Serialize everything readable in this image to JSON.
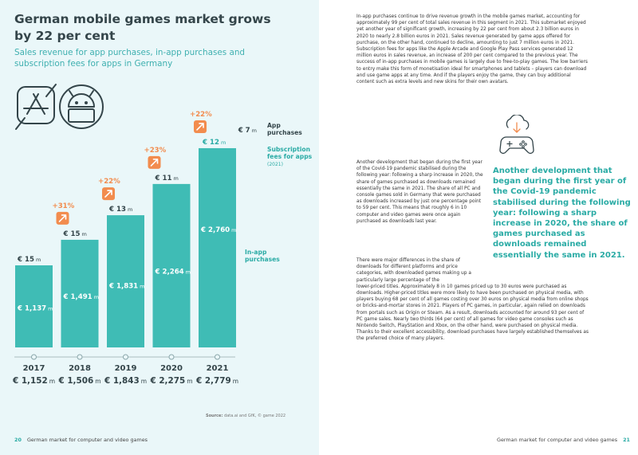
{
  "left_page": {
    "title": "German mobile games market grows by 22 per cent",
    "subtitle": "Sales revenue for app purchases, in-app purchases and subscription fees for apps in Germany",
    "legend": {
      "app_purchases": "App purchases",
      "subscription_fees": "Subscription fees for apps",
      "subscription_year": "(2021)",
      "in_app_purchases": "In-app purchases"
    },
    "source_label": "Source:",
    "source_text": "data.ai and GfK, © game 2022",
    "footer_page_number": "20",
    "footer_text": "German market for computer and video games"
  },
  "chart_data": {
    "type": "bar",
    "stacked": true,
    "title": "German mobile games market grows by 22 per cent",
    "subtitle": "Sales revenue for app purchases, in-app purchases and subscription fees for apps in Germany",
    "unit": "€ m",
    "categories": [
      "2017",
      "2018",
      "2019",
      "2020",
      "2021"
    ],
    "series": [
      {
        "name": "In-app purchases",
        "values": [
          1137,
          1491,
          1831,
          2264,
          2760
        ],
        "labels": [
          "€ 1,137",
          "€ 1,491",
          "€ 1,831",
          "€ 2,264",
          "€ 2,760"
        ]
      },
      {
        "name": "App purchases",
        "values": [
          15,
          15,
          13,
          11,
          7
        ],
        "labels": [
          "€ 15",
          "€ 15",
          "€ 13",
          "€ 11",
          "€ 7"
        ]
      },
      {
        "name": "Subscription fees for apps",
        "values": [
          0,
          0,
          0,
          0,
          12
        ],
        "labels": [
          "",
          "",
          "",
          "",
          "€ 12"
        ]
      }
    ],
    "totals": [
      1152,
      1506,
      1843,
      2275,
      2779
    ],
    "total_labels": [
      "€ 1,152",
      "€ 1,506",
      "€ 1,843",
      "€ 2,275",
      "€ 2,779"
    ],
    "unit_suffix": "m",
    "growth": [
      "",
      "+31%",
      "+22%",
      "+23%",
      "+22%"
    ],
    "colors": {
      "bar": "#3fbcb5",
      "arrow": "#f28c4e",
      "growth_text": "#f28c4e",
      "label": "#2aaba5",
      "dark": "#34454a"
    }
  },
  "right_page": {
    "p1": "In-app purchases continue to drive revenue growth in the mobile games market, accounting for approximately 99 per cent of total sales revenue in this segment in 2021. This submarket enjoyed yet another year of significant growth, increasing by 22 per cent from about 2.3 billion euros in 2020 to nearly 2.8 billion euros in 2021. Sales revenue generated by game apps offered for purchase, on the other hand, continued to decline, amounting to just 7 million euros in 2021. Subscription fees for apps like the Apple Arcade and Google Play Pass services generated 12 million euros in sales revenue, an increase of 200 per cent compared to the previous year. The success of in-app purchases in mobile games is largely due to free-to-play games. The low barriers to entry make this form of monetisation ideal for smartphones and tablets – players can download and use game apps at any time. And if the players enjoy the game, they can buy additional content such as extra levels and new skins for their own avatars.",
    "p2": "Another development that began during the first year of the Covid-19 pandemic stabilised during the following year: following a sharp increase in 2020, the share of games purchased as downloads remained essentially the same in 2021. The share of all PC and console games sold in Germany that were purchased as downloads increased by just one percentage point to 59 per cent. This means that roughly 6 in 10 computer and video games were once again purchased as downloads last year.",
    "p3_intro": "There were major differences in the share of downloads for different platforms and price categories, with downloaded games making up a particularly large percentage of the",
    "p3_rest": "lower-priced titles. Approximately 8 in 10 games priced up to 30 euros were purchased as downloads. Higher-priced titles were more likely to have been purchased on physical media, with players buying 68 per cent of all games costing over 30 euros on physical media from online shops or bricks-and-mortar stores in 2021. Players of PC games, in particular, again relied on downloads from portals such as Origin or Steam. As a result, downloads accounted for around 93 per cent of PC game sales. Nearly two thirds (64 per cent) of all games for video game consoles such as Nintendo Switch, PlayStation and Xbox, on the other hand, were purchased on physical media. Thanks to their excellent accessibility, download purchases have largely established themselves as the preferred choice of many players.",
    "quote": "Another development that began during the first year of the Covid-19 pandemic stabilised during the following year: following a sharp increase in 2020, the share of games purchased as downloads remained essentially the same in 2021.",
    "footer_text": "German market for computer and video games",
    "footer_page_number": "21"
  }
}
